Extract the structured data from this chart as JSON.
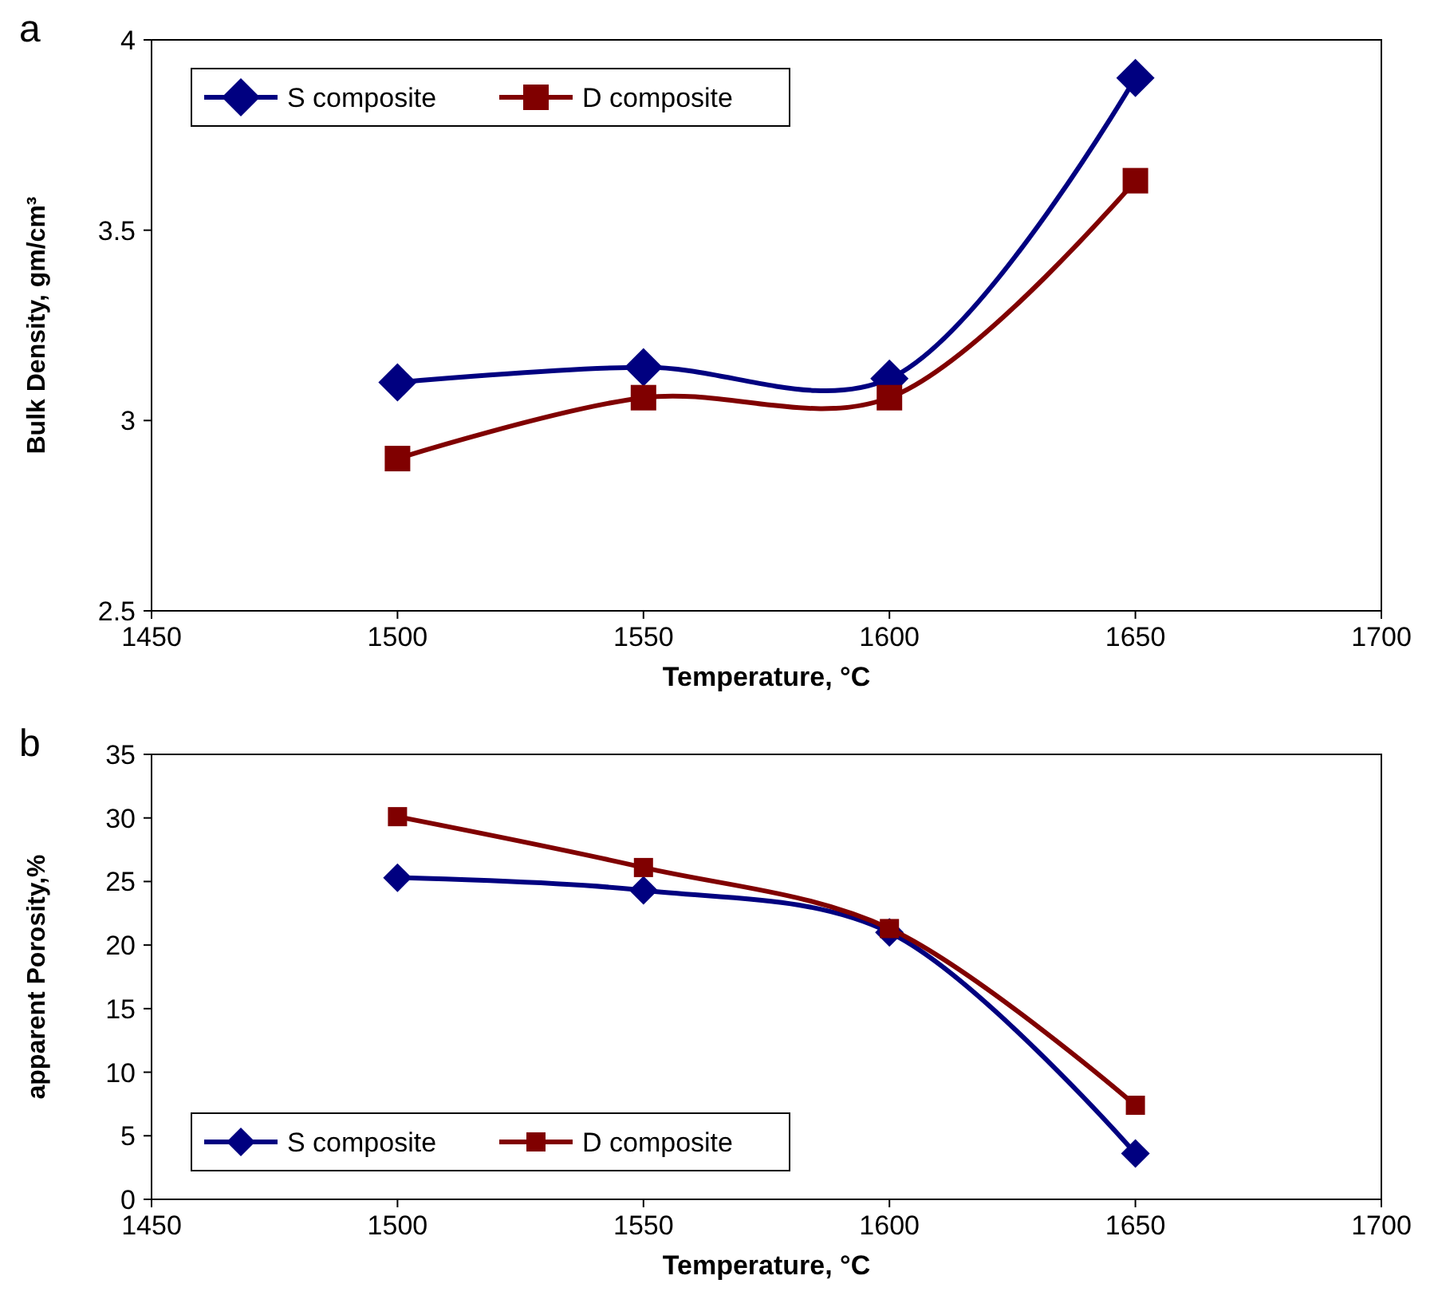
{
  "chart_data": [
    {
      "type": "line",
      "annotations": [
        "a"
      ],
      "xlabel": "Temperature, °C",
      "ylabel": "Bulk Density, gm/cm³",
      "x": [
        1500,
        1550,
        1600,
        1650
      ],
      "xlim": [
        1450,
        1700
      ],
      "xticks": [
        1450,
        1500,
        1550,
        1600,
        1650,
        1700
      ],
      "ylim": [
        2.5,
        4
      ],
      "yticks": [
        2.5,
        3,
        3.5,
        4
      ],
      "grid": false,
      "legend": "top left",
      "series": [
        {
          "name": "S composite",
          "color": "#000080",
          "marker": "diamond",
          "values": [
            3.1,
            3.14,
            3.11,
            3.9
          ]
        },
        {
          "name": "D composite",
          "color": "#800000",
          "marker": "square",
          "values": [
            2.9,
            3.06,
            3.06,
            3.63
          ]
        }
      ]
    },
    {
      "type": "line",
      "annotations": [
        "b"
      ],
      "xlabel": "Temperature, °C",
      "ylabel": "apparent Porosity,%",
      "x": [
        1500,
        1550,
        1600,
        1650
      ],
      "xlim": [
        1450,
        1700
      ],
      "xticks": [
        1450,
        1500,
        1550,
        1600,
        1650,
        1700
      ],
      "ylim": [
        0,
        35
      ],
      "yticks": [
        0,
        5,
        10,
        15,
        20,
        25,
        30,
        35
      ],
      "grid": false,
      "legend": "bottom left",
      "series": [
        {
          "name": "S composite",
          "color": "#000080",
          "marker": "diamond",
          "values": [
            25.3,
            24.3,
            21.0,
            3.6
          ]
        },
        {
          "name": "D composite",
          "color": "#800000",
          "marker": "square",
          "values": [
            30.1,
            26.1,
            21.3,
            7.4
          ]
        }
      ]
    }
  ]
}
